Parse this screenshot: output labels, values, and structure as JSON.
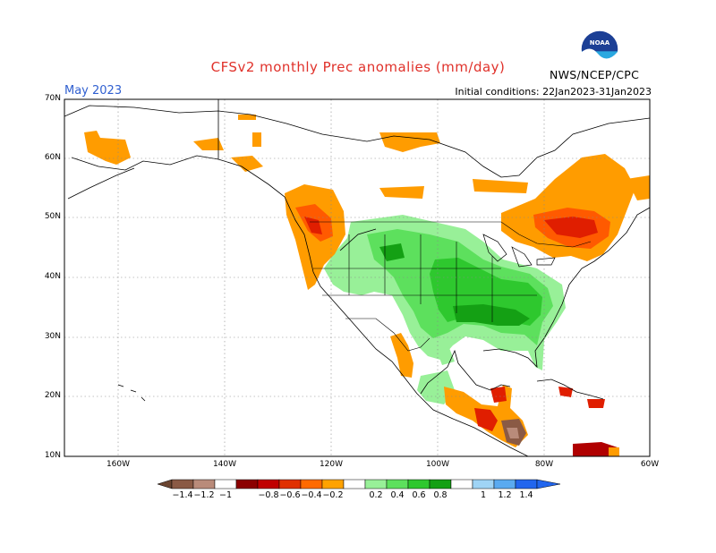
{
  "title": "CFSv2 monthly Prec anomalies (mm/day)",
  "period": "May 2023",
  "initial_conditions": "Initial conditions: 22Jan2023-31Jan2023",
  "agency": "NWS/NCEP/CPC",
  "logo_text": "NOAA",
  "lat_labels": [
    "70N",
    "60N",
    "50N",
    "40N",
    "30N",
    "20N",
    "10N"
  ],
  "lon_labels": [
    "160W",
    "140W",
    "120W",
    "100W",
    "80W",
    "60W"
  ],
  "colorbar": {
    "labels": [
      "−1.4",
      "−1.2",
      "−1",
      "−0.8",
      "−0.6",
      "−0.4",
      "−0.2",
      "0.2",
      "0.4",
      "0.6",
      "0.8",
      "1",
      "1.2",
      "1.4"
    ],
    "colors": [
      "#6b4530",
      "#8a5a45",
      "#b98b7a",
      "#8b0000",
      "#c00000",
      "#e03000",
      "#ff6a00",
      "#ffa200",
      "#ffffff",
      "#98f098",
      "#5de05d",
      "#2ec82e",
      "#14a014",
      "#9fd4f5",
      "#5aaaf0",
      "#2266ee"
    ]
  },
  "colors": {
    "dry_light": "#ff9c00",
    "dry_mid": "#ff5a00",
    "dry_strong": "#e01e00",
    "dry_deep": "#b00000",
    "brown": "#8a5a45",
    "wet_light": "#98f098",
    "wet_mid": "#5de05d",
    "wet_strong": "#2ec82e",
    "wet_deep": "#14a014"
  }
}
